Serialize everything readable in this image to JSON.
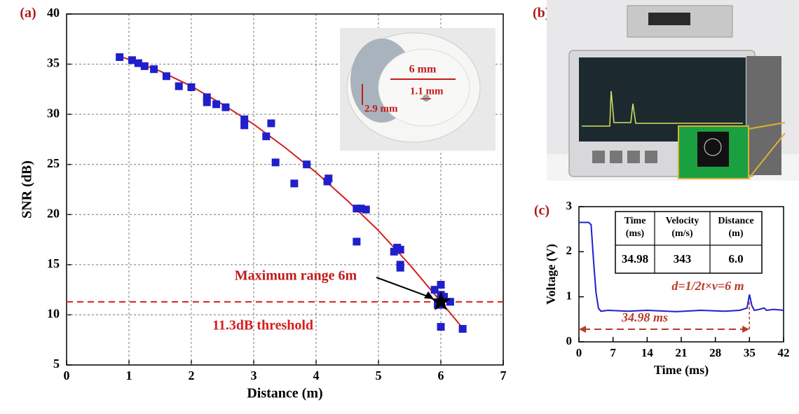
{
  "chart_data": [
    {
      "type": "scatter",
      "panel_label": "(a)",
      "x_label": "Distance (m)",
      "y_label": "SNR (dB)",
      "xlim": [
        0,
        7
      ],
      "xticks": [
        0,
        1,
        2,
        3,
        4,
        5,
        6,
        7
      ],
      "ylim": [
        5,
        40
      ],
      "yticks": [
        5,
        10,
        15,
        20,
        25,
        30,
        35,
        40
      ],
      "grid": true,
      "points": {
        "color": "#1f1fcc",
        "x": [
          0.85,
          1.05,
          1.15,
          1.25,
          1.4,
          1.6,
          1.8,
          2.0,
          2.25,
          2.25,
          2.4,
          2.55,
          2.85,
          2.85,
          3.2,
          3.28,
          3.35,
          3.65,
          3.85,
          4.18,
          4.2,
          4.65,
          4.65,
          4.72,
          4.8,
          5.25,
          5.3,
          5.35,
          5.35,
          5.35,
          5.9,
          5.95,
          6.0,
          6.0,
          6.0,
          6.0,
          6.05,
          6.15,
          6.35
        ],
        "y": [
          35.7,
          35.4,
          35.1,
          34.8,
          34.5,
          33.8,
          32.8,
          32.7,
          31.7,
          31.2,
          31.0,
          30.7,
          29.5,
          28.9,
          27.8,
          29.1,
          25.2,
          23.1,
          25.0,
          23.3,
          23.6,
          17.3,
          20.6,
          20.6,
          20.5,
          16.3,
          16.7,
          16.5,
          15.0,
          14.7,
          12.5,
          11.0,
          13.0,
          12.0,
          11.0,
          8.8,
          11.8,
          11.3,
          8.6
        ]
      },
      "fit": {
        "color": "#d42020",
        "x": [
          0.85,
          1.5,
          2.0,
          2.5,
          3.0,
          3.5,
          4.0,
          4.5,
          5.0,
          5.5,
          6.0,
          6.4
        ],
        "y": [
          35.8,
          34.3,
          32.8,
          31.0,
          29.0,
          26.7,
          24.2,
          21.4,
          18.4,
          15.0,
          11.3,
          8.3
        ]
      },
      "threshold": {
        "value": 11.3,
        "label": "11.3dB threshold",
        "color": "#d42020"
      },
      "max_point": {
        "x": 6,
        "y": 11.3,
        "label": "Maximum range 6m"
      },
      "inset_labels": [
        "6 mm",
        "1.1 mm",
        "2.9 mm"
      ]
    },
    {
      "type": "line",
      "panel_label": "(c)",
      "x_label": "Time (ms)",
      "y_label": "Voltage  (V)",
      "xlim": [
        0,
        42
      ],
      "xticks": [
        0,
        7,
        14,
        21,
        28,
        35,
        42
      ],
      "ylim": [
        0,
        3
      ],
      "yticks": [
        0,
        1,
        2,
        3
      ],
      "color": "#1f1fcc",
      "x": [
        0,
        2,
        2.5,
        3,
        3.5,
        4,
        4.5,
        6,
        10,
        14,
        20,
        25,
        30,
        33,
        34.5,
        35,
        35.5,
        36,
        37,
        38,
        38.5,
        40,
        42
      ],
      "values": [
        2.65,
        2.65,
        2.6,
        1.8,
        1.1,
        0.75,
        0.68,
        0.7,
        0.68,
        0.7,
        0.67,
        0.7,
        0.68,
        0.7,
        0.75,
        1.05,
        0.8,
        0.7,
        0.72,
        0.75,
        0.7,
        0.72,
        0.7
      ],
      "formula": "d=1/2t×v=6 m",
      "interval": {
        "start": 0,
        "end": 34.98,
        "label": "34.98 ms",
        "color": "#b83a2a"
      },
      "table": {
        "header": [
          "Time (ms)",
          "Velocity (m/s)",
          "Distance (m)"
        ],
        "rows": [
          [
            "34.98",
            "343",
            "6.0"
          ]
        ]
      }
    }
  ],
  "photo_panel_label": "(b)"
}
